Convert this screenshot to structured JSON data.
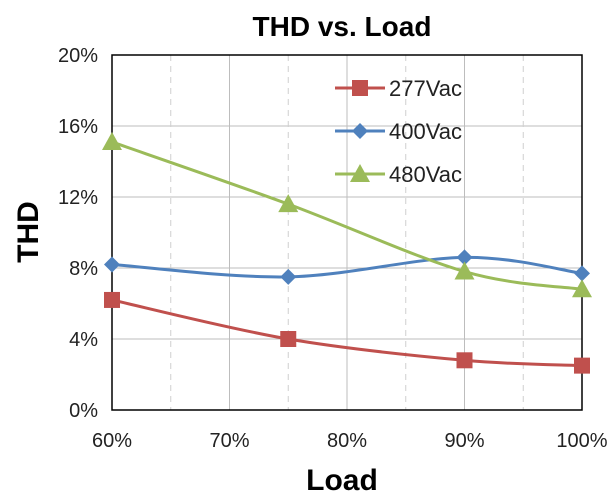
{
  "chart_data": {
    "type": "line",
    "title": "THD vs. Load",
    "xlabel": "Load",
    "ylabel": "THD",
    "x": [
      60,
      75,
      90,
      100
    ],
    "xlim": [
      60,
      100
    ],
    "ylim": [
      0,
      20
    ],
    "x_ticks": [
      60,
      70,
      80,
      90,
      100
    ],
    "x_tick_labels": [
      "60%",
      "70%",
      "80%",
      "90%",
      "100%"
    ],
    "y_ticks": [
      0,
      4,
      8,
      12,
      16,
      20
    ],
    "y_tick_labels": [
      "0%",
      "4%",
      "8%",
      "12%",
      "16%",
      "20%"
    ],
    "grid": true,
    "legend_position": "top-right",
    "series": [
      {
        "name": "277Vac",
        "values": [
          6.2,
          4.0,
          2.8,
          2.5
        ],
        "color": "#c0504d",
        "marker": "square"
      },
      {
        "name": "400Vac",
        "values": [
          8.2,
          7.5,
          8.6,
          7.7
        ],
        "color": "#4f81bd",
        "marker": "diamond"
      },
      {
        "name": "480Vac",
        "values": [
          15.1,
          11.6,
          7.8,
          6.8
        ],
        "color": "#9bbb59",
        "marker": "triangle"
      }
    ]
  }
}
